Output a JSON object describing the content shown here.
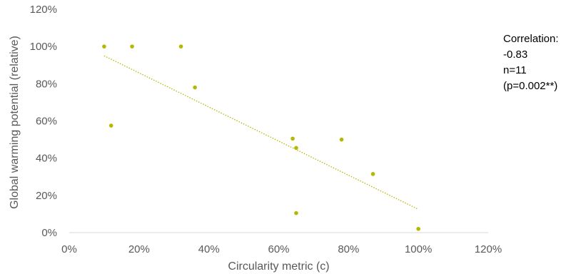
{
  "chart_data": {
    "type": "scatter",
    "title": "",
    "xlabel": "Circularity metric (c)",
    "ylabel": "Global warming potential (relative)",
    "xlim": [
      0,
      1.2
    ],
    "ylim": [
      0,
      1.2
    ],
    "x_ticks": [
      "0%",
      "20%",
      "40%",
      "60%",
      "80%",
      "100%",
      "120%"
    ],
    "y_ticks": [
      "0%",
      "20%",
      "40%",
      "60%",
      "80%",
      "100%",
      "120%"
    ],
    "grid": false,
    "points": [
      {
        "x": 0.1,
        "y": 1.0
      },
      {
        "x": 0.12,
        "y": 0.575
      },
      {
        "x": 0.18,
        "y": 1.0
      },
      {
        "x": 0.32,
        "y": 1.0
      },
      {
        "x": 0.36,
        "y": 0.78
      },
      {
        "x": 0.64,
        "y": 0.505
      },
      {
        "x": 0.65,
        "y": 0.455
      },
      {
        "x": 0.65,
        "y": 0.105
      },
      {
        "x": 0.78,
        "y": 0.5
      },
      {
        "x": 0.87,
        "y": 0.315
      },
      {
        "x": 1.0,
        "y": 0.02
      }
    ],
    "trendline": {
      "style": "dotted",
      "x": [
        0.1,
        1.0
      ],
      "y": [
        0.95,
        0.125
      ]
    },
    "annotation": [
      "Correlation:",
      "-0.83",
      "n=11",
      "(p=0.002**)"
    ]
  },
  "colors": {
    "marker": "#b5b800",
    "trendline": "#b5b800",
    "axis": "#d9d9d9",
    "tick_text": "#595959"
  }
}
